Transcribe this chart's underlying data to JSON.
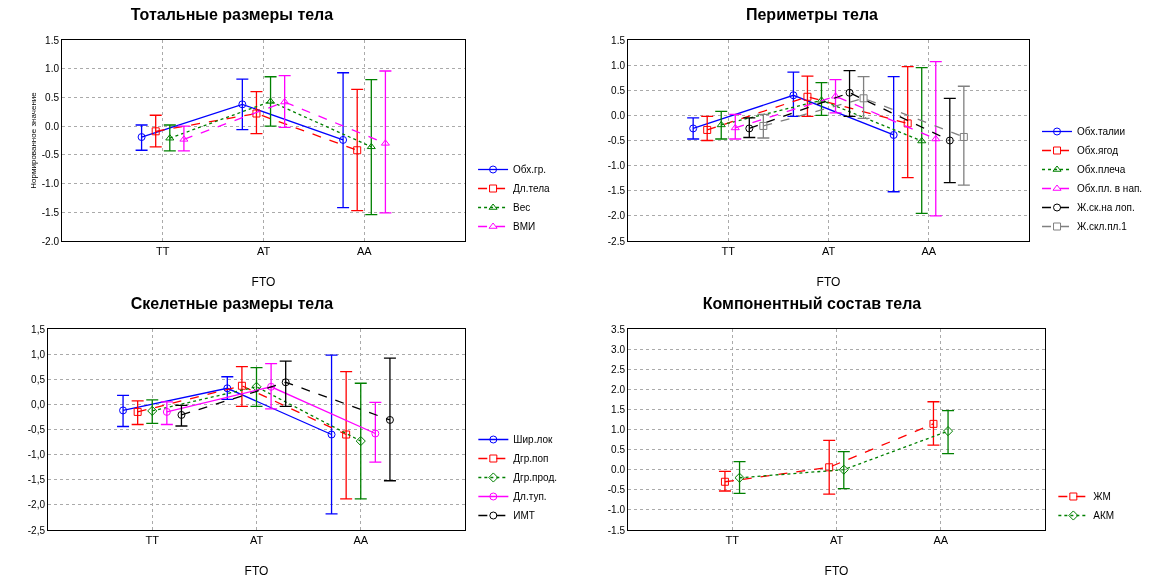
{
  "chart_data": [
    {
      "type": "line",
      "title": "Тотальные размеры тела",
      "xlabel": "FTO",
      "ylabel": "Нормированное значение",
      "categories": [
        "TT",
        "AT",
        "AA"
      ],
      "ylim": [
        -2,
        1.5
      ],
      "yticks": [
        {
          "value": 1.5,
          "label": "1.5"
        },
        {
          "value": 1,
          "label": "1.0"
        },
        {
          "value": 0.5,
          "label": "0.5"
        },
        {
          "value": 0,
          "label": "0.0"
        },
        {
          "value": -0.5,
          "label": "-0.5"
        },
        {
          "value": -1,
          "label": "-1.0"
        },
        {
          "value": -1.5,
          "label": "-1.5"
        },
        {
          "value": -2,
          "label": "-2.0"
        }
      ],
      "grid": true,
      "legend": "bottom right",
      "series": [
        {
          "name": "Обх.гр.",
          "color": "#0000ff",
          "line_style": "solid",
          "marker": "circle",
          "values": [
            -0.19,
            0.38,
            -0.24
          ],
          "errors": [
            [
              -0.42,
              0.02
            ],
            [
              -0.06,
              0.82
            ],
            [
              -1.42,
              0.93
            ]
          ]
        },
        {
          "name": "Дл.тела",
          "color": "#ff0000",
          "line_style": "dashed",
          "marker": "square",
          "values": [
            -0.09,
            0.22,
            -0.42
          ],
          "errors": [
            [
              -0.36,
              0.19
            ],
            [
              -0.13,
              0.6
            ],
            [
              -1.47,
              0.64
            ]
          ]
        },
        {
          "name": "Вес",
          "color": "#008000",
          "line_style": "dotted",
          "marker": "triangle",
          "values": [
            -0.21,
            0.43,
            -0.36
          ],
          "errors": [
            [
              -0.43,
              0.02
            ],
            [
              0,
              0.86
            ],
            [
              -1.54,
              0.81
            ]
          ]
        },
        {
          "name": "ВМИ",
          "color": "#ff00ff",
          "line_style": "dashed",
          "marker": "triangle",
          "values": [
            -0.23,
            0.42,
            -0.3
          ],
          "errors": [
            [
              -0.43,
              0
            ],
            [
              -0.02,
              0.88
            ],
            [
              -1.51,
              0.96
            ]
          ]
        }
      ]
    },
    {
      "type": "line",
      "title": "Периметры тела",
      "xlabel": "FTO",
      "categories": [
        "TT",
        "AT",
        "AA"
      ],
      "ylim": [
        -2.5,
        1.5
      ],
      "yticks": [
        {
          "value": 1.5,
          "label": "1.5"
        },
        {
          "value": 1,
          "label": "1.0"
        },
        {
          "value": 0.5,
          "label": "0.5"
        },
        {
          "value": 0,
          "label": "0.0"
        },
        {
          "value": -0.5,
          "label": "-0.5"
        },
        {
          "value": -1,
          "label": "-1.0"
        },
        {
          "value": -1.5,
          "label": "-1.5"
        },
        {
          "value": -2,
          "label": "-2.0"
        },
        {
          "value": -2.5,
          "label": "-2.5"
        }
      ],
      "grid": true,
      "legend": "bottom right",
      "series": [
        {
          "name": "Обх.талии",
          "color": "#0000ff",
          "line_style": "solid",
          "marker": "circle",
          "values": [
            -0.26,
            0.4,
            -0.39
          ],
          "errors": [
            [
              -0.47,
              -0.05
            ],
            [
              -0.02,
              0.86
            ],
            [
              -1.52,
              0.77
            ]
          ]
        },
        {
          "name": "Обх.ягод",
          "color": "#ff0000",
          "line_style": "dashed",
          "marker": "square",
          "values": [
            -0.29,
            0.37,
            -0.16
          ],
          "errors": [
            [
              -0.5,
              -0.02
            ],
            [
              -0.02,
              0.78
            ],
            [
              -1.24,
              0.97
            ]
          ]
        },
        {
          "name": "Обх.плеча",
          "color": "#008000",
          "line_style": "dotted",
          "marker": "triangle",
          "values": [
            -0.19,
            0.3,
            -0.51
          ],
          "errors": [
            [
              -0.47,
              0.08
            ],
            [
              0,
              0.65
            ],
            [
              -1.95,
              0.95
            ]
          ]
        },
        {
          "name": "Обх.пл. в нап.",
          "color": "#ff00ff",
          "line_style": "dashed",
          "marker": "triangle",
          "values": [
            -0.25,
            0.38,
            -0.47
          ],
          "errors": [
            [
              -0.47,
              0.02
            ],
            [
              0.05,
              0.71
            ],
            [
              -2,
              1.07
            ]
          ]
        },
        {
          "name": "Ж.ск.на лоп.",
          "color": "#000000",
          "line_style": "dashed",
          "marker": "circle",
          "values": [
            -0.26,
            0.45,
            -0.5
          ],
          "errors": [
            [
              -0.44,
              -0.05
            ],
            [
              -0.02,
              0.89
            ],
            [
              -1.34,
              0.34
            ]
          ]
        },
        {
          "name": "Ж.скл.пл.1",
          "color": "#808080",
          "line_style": "dashed",
          "marker": "square",
          "values": [
            -0.21,
            0.34,
            -0.43
          ],
          "errors": [
            [
              -0.45,
              0.02
            ],
            [
              -0.06,
              0.77
            ],
            [
              -1.39,
              0.58
            ]
          ]
        }
      ]
    },
    {
      "type": "line",
      "title": "Скелетные размеры тела",
      "xlabel": "FTO",
      "categories": [
        "TT",
        "AT",
        "AA"
      ],
      "ylim": [
        -2.5,
        1.5
      ],
      "yticks": [
        {
          "value": 1.5,
          "label": "1,5"
        },
        {
          "value": 1,
          "label": "1,0"
        },
        {
          "value": 0.5,
          "label": "0,5"
        },
        {
          "value": 0,
          "label": "0,0"
        },
        {
          "value": -0.5,
          "label": "-0,5"
        },
        {
          "value": -1,
          "label": "-1,0"
        },
        {
          "value": -1.5,
          "label": "-1,5"
        },
        {
          "value": -2,
          "label": "-2,0"
        },
        {
          "value": -2.5,
          "label": "-2,5"
        }
      ],
      "grid": true,
      "legend": "bottom right",
      "series": [
        {
          "name": "Шир.лок",
          "color": "#0000ff",
          "line_style": "solid",
          "marker": "circle",
          "values": [
            -0.12,
            0.32,
            -0.6
          ],
          "errors": [
            [
              -0.44,
              0.18
            ],
            [
              0.1,
              0.55
            ],
            [
              -2.18,
              0.98
            ]
          ]
        },
        {
          "name": "Дгр.поп",
          "color": "#ff0000",
          "line_style": "dashed",
          "marker": "square",
          "values": [
            -0.15,
            0.37,
            -0.6
          ],
          "errors": [
            [
              -0.4,
              0.07
            ],
            [
              -0.04,
              0.75
            ],
            [
              -1.88,
              0.65
            ]
          ]
        },
        {
          "name": "Дгр.прод.",
          "color": "#008000",
          "line_style": "dotted",
          "marker": "diamond",
          "values": [
            -0.13,
            0.35,
            -0.73
          ],
          "errors": [
            [
              -0.38,
              0.09
            ],
            [
              -0.04,
              0.73
            ],
            [
              -1.88,
              0.42
            ]
          ]
        },
        {
          "name": "Дл.туп.",
          "color": "#ff00ff",
          "line_style": "solid",
          "marker": "circle",
          "values": [
            -0.15,
            0.35,
            -0.58
          ],
          "errors": [
            [
              -0.4,
              0.05
            ],
            [
              -0.09,
              0.81
            ],
            [
              -1.15,
              0.04
            ]
          ]
        },
        {
          "name": "ИМТ",
          "color": "#000000",
          "line_style": "dashed",
          "marker": "circle",
          "values": [
            -0.21,
            0.44,
            -0.31
          ],
          "errors": [
            [
              -0.43,
              -0.02
            ],
            [
              -0.04,
              0.86
            ],
            [
              -1.52,
              0.92
            ]
          ]
        }
      ]
    },
    {
      "type": "line",
      "title": "Компонентный состав тела",
      "xlabel": "FTO",
      "categories": [
        "TT",
        "AT",
        "AA"
      ],
      "ylim": [
        -1.5,
        3.5
      ],
      "yticks": [
        {
          "value": 3.5,
          "label": "3.5"
        },
        {
          "value": 3,
          "label": "3.0"
        },
        {
          "value": 2.5,
          "label": "2.5"
        },
        {
          "value": 2,
          "label": "2.0"
        },
        {
          "value": 1.5,
          "label": "1.5"
        },
        {
          "value": 1,
          "label": "1.0"
        },
        {
          "value": 0.5,
          "label": "0.5"
        },
        {
          "value": 0,
          "label": "0.0"
        },
        {
          "value": -0.5,
          "label": "-0.5"
        },
        {
          "value": -1,
          "label": "-1.0"
        },
        {
          "value": -1.5,
          "label": "-1.5"
        }
      ],
      "grid": true,
      "legend": "bottom right",
      "series": [
        {
          "name": "ЖМ",
          "color": "#ff0000",
          "line_style": "dashed",
          "marker": "square",
          "values": [
            -0.3,
            0.06,
            1.14
          ],
          "errors": [
            [
              -0.53,
              -0.04
            ],
            [
              -0.61,
              0.73
            ],
            [
              0.61,
              1.69
            ]
          ]
        },
        {
          "name": "АКМ",
          "color": "#008000",
          "line_style": "dotted",
          "marker": "diamond",
          "values": [
            -0.2,
            0,
            0.96
          ],
          "errors": [
            [
              -0.59,
              0.2
            ],
            [
              -0.47,
              0.45
            ],
            [
              0.4,
              1.47
            ]
          ]
        }
      ]
    }
  ]
}
